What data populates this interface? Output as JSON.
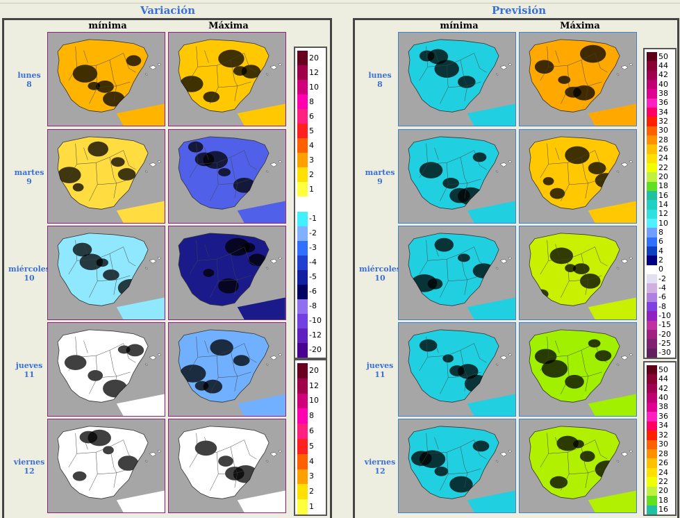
{
  "header": {
    "variacion_title": "Variación",
    "prevision_title": "Previsión"
  },
  "columns": {
    "minima": "mínima",
    "maxima": "Máxima"
  },
  "days": [
    {
      "name": "lunes",
      "num": "8"
    },
    {
      "name": "martes",
      "num": "9"
    },
    {
      "name": "miércoles",
      "num": "10"
    },
    {
      "name": "jueves",
      "num": "11"
    },
    {
      "name": "viernes",
      "num": "12"
    }
  ],
  "variacion_maps": [
    {
      "min": "#ffb400",
      "max": "#ffc800",
      "min_accent": "#e03000",
      "max_accent": "#ff8000"
    },
    {
      "min": "#ffdc40",
      "max": "#5060e8",
      "min_accent": "#ff8000",
      "max_accent": "#1a1a8a"
    },
    {
      "min": "#90e8ff",
      "max": "#1a1a8a",
      "min_accent": "#ff4000",
      "max_accent": "#9070e0"
    },
    {
      "min": "#ffffff",
      "max": "#70b0ff",
      "min_accent": "#40e0ff",
      "max_accent": "#2040c0"
    },
    {
      "min": "#ffffff",
      "max": "#ffffff",
      "min_accent": "#60f0ff",
      "max_accent": "#ffe040"
    }
  ],
  "prevision_maps": [
    {
      "min": "#20d0e0",
      "max": "#ffa800",
      "min_accent": "#2050d0",
      "max_accent": "#e04000"
    },
    {
      "min": "#20d0e0",
      "max": "#ffc800",
      "min_accent": "#2050d0",
      "max_accent": "#ff9000"
    },
    {
      "min": "#20d0e0",
      "max": "#c8f000",
      "min_accent": "#4060e0",
      "max_accent": "#40c0c0"
    },
    {
      "min": "#20d0e0",
      "max": "#a0f000",
      "min_accent": "#2040c0",
      "max_accent": "#20b0b0"
    },
    {
      "min": "#20d0e0",
      "max": "#b0f000",
      "min_accent": "#2040c0",
      "max_accent": "#30c0c0"
    }
  ],
  "legend_variacion": [
    {
      "label": "20",
      "color": "#6a0020"
    },
    {
      "label": "12",
      "color": "#a0004a"
    },
    {
      "label": "10",
      "color": "#d0007a"
    },
    {
      "label": "8",
      "color": "#ff00b0"
    },
    {
      "label": "6",
      "color": "#ff2080"
    },
    {
      "label": "5",
      "color": "#ff2020"
    },
    {
      "label": "4",
      "color": "#ff6000"
    },
    {
      "label": "3",
      "color": "#ffa000"
    },
    {
      "label": "2",
      "color": "#ffe000"
    },
    {
      "label": "1",
      "color": "#ffff40"
    },
    {
      "label": "",
      "color": "#ffffff"
    },
    {
      "label": "-1",
      "color": "#40f0ff"
    },
    {
      "label": "-2",
      "color": "#80b0ff"
    },
    {
      "label": "-3",
      "color": "#3070ff"
    },
    {
      "label": "-4",
      "color": "#2040d0"
    },
    {
      "label": "-5",
      "color": "#1020a0"
    },
    {
      "label": "-6",
      "color": "#000060"
    },
    {
      "label": "-8",
      "color": "#9070f0"
    },
    {
      "label": "-10",
      "color": "#7040e0"
    },
    {
      "label": "-12",
      "color": "#6020c0"
    },
    {
      "label": "-20",
      "color": "#4a0090"
    }
  ],
  "legend_variacion_2": [
    {
      "label": "20",
      "color": "#6a0020"
    },
    {
      "label": "12",
      "color": "#a0004a"
    },
    {
      "label": "10",
      "color": "#d0007a"
    },
    {
      "label": "8",
      "color": "#ff00b0"
    },
    {
      "label": "6",
      "color": "#ff2080"
    },
    {
      "label": "5",
      "color": "#ff2020"
    },
    {
      "label": "4",
      "color": "#ff6000"
    },
    {
      "label": "3",
      "color": "#ffa000"
    },
    {
      "label": "2",
      "color": "#ffe000"
    },
    {
      "label": "1",
      "color": "#ffff40"
    }
  ],
  "legend_prevision": [
    {
      "label": "50",
      "color": "#600018"
    },
    {
      "label": "44",
      "color": "#8a0030"
    },
    {
      "label": "42",
      "color": "#a00050"
    },
    {
      "label": "40",
      "color": "#c00070"
    },
    {
      "label": "38",
      "color": "#e00090"
    },
    {
      "label": "36",
      "color": "#ff20c0"
    },
    {
      "label": "34",
      "color": "#ff0060"
    },
    {
      "label": "32",
      "color": "#ff2000"
    },
    {
      "label": "30",
      "color": "#ff6000"
    },
    {
      "label": "28",
      "color": "#ff9000"
    },
    {
      "label": "26",
      "color": "#ffc000"
    },
    {
      "label": "24",
      "color": "#ffe000"
    },
    {
      "label": "22",
      "color": "#f0ff00"
    },
    {
      "label": "20",
      "color": "#c0f040"
    },
    {
      "label": "18",
      "color": "#60e020"
    },
    {
      "label": "16",
      "color": "#20c0a0"
    },
    {
      "label": "14",
      "color": "#20d0c0"
    },
    {
      "label": "12",
      "color": "#30e0e0"
    },
    {
      "label": "10",
      "color": "#50f0ff"
    },
    {
      "label": "8",
      "color": "#70a0ff"
    },
    {
      "label": "6",
      "color": "#3070ff"
    },
    {
      "label": "4",
      "color": "#1040c0"
    },
    {
      "label": "2",
      "color": "#000080"
    },
    {
      "label": "0",
      "color": "#ffffff"
    },
    {
      "label": "-2",
      "color": "#e0e0f0"
    },
    {
      "label": "-4",
      "color": "#d0b0e0"
    },
    {
      "label": "-6",
      "color": "#b080e0"
    },
    {
      "label": "-8",
      "color": "#8040e0"
    },
    {
      "label": "-10",
      "color": "#9020c0"
    },
    {
      "label": "-15",
      "color": "#c030a0"
    },
    {
      "label": "-20",
      "color": "#a02080"
    },
    {
      "label": "-25",
      "color": "#802070"
    },
    {
      "label": "-30",
      "color": "#602060"
    }
  ],
  "legend_prevision_2": [
    {
      "label": "50",
      "color": "#600018"
    },
    {
      "label": "44",
      "color": "#8a0030"
    },
    {
      "label": "42",
      "color": "#a00050"
    },
    {
      "label": "40",
      "color": "#c00070"
    },
    {
      "label": "38",
      "color": "#e00090"
    },
    {
      "label": "36",
      "color": "#ff20c0"
    },
    {
      "label": "34",
      "color": "#ff0060"
    },
    {
      "label": "32",
      "color": "#ff2000"
    },
    {
      "label": "30",
      "color": "#ff6000"
    },
    {
      "label": "28",
      "color": "#ff9000"
    },
    {
      "label": "26",
      "color": "#ffc000"
    },
    {
      "label": "24",
      "color": "#ffe000"
    },
    {
      "label": "22",
      "color": "#f0ff00"
    },
    {
      "label": "20",
      "color": "#c0f040"
    },
    {
      "label": "18",
      "color": "#60e020"
    },
    {
      "label": "16",
      "color": "#20c0a0"
    }
  ]
}
